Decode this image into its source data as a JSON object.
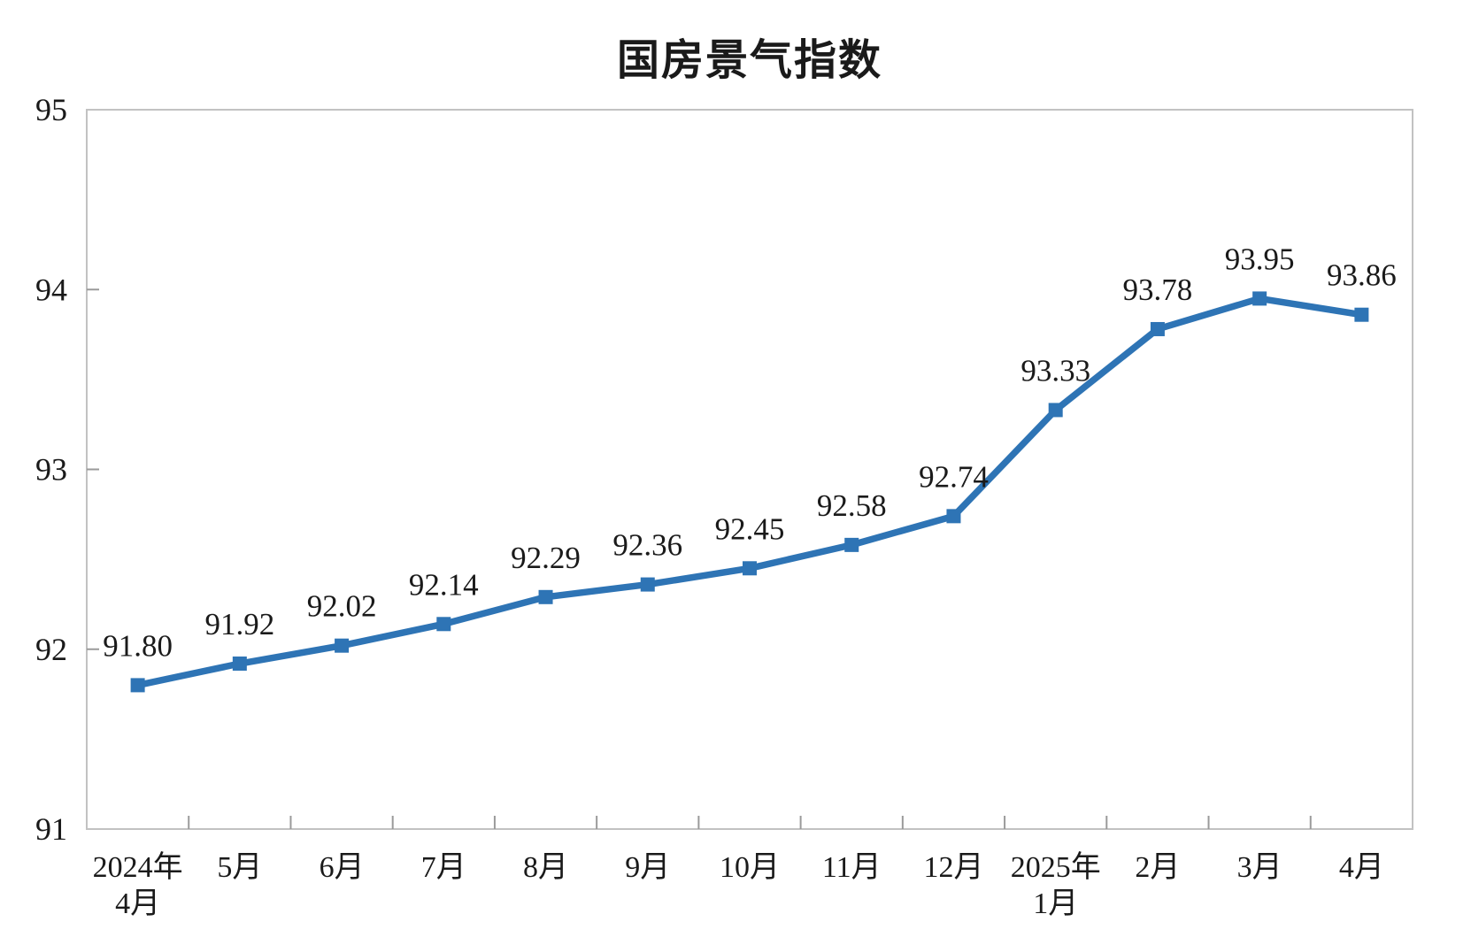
{
  "chart_data": {
    "type": "line",
    "title": "国房景气指数",
    "categories": [
      [
        "2024年",
        "4月"
      ],
      [
        "5月"
      ],
      [
        "6月"
      ],
      [
        "7月"
      ],
      [
        "8月"
      ],
      [
        "9月"
      ],
      [
        "10月"
      ],
      [
        "11月"
      ],
      [
        "12月"
      ],
      [
        "2025年",
        "1月"
      ],
      [
        "2月"
      ],
      [
        "3月"
      ],
      [
        "4月"
      ]
    ],
    "values": [
      91.8,
      91.92,
      92.02,
      92.14,
      92.29,
      92.36,
      92.45,
      92.58,
      92.74,
      93.33,
      93.78,
      93.95,
      93.86
    ],
    "value_labels": [
      "91.80",
      "91.92",
      "92.02",
      "92.14",
      "92.29",
      "92.36",
      "92.45",
      "92.58",
      "92.74",
      "93.33",
      "93.78",
      "93.95",
      "93.86"
    ],
    "xlabel": "",
    "ylabel": "",
    "ylim": [
      91,
      95
    ],
    "yticks": [
      91,
      92,
      93,
      94,
      95
    ],
    "grid": false,
    "legend": "none",
    "marker": "square",
    "data_label_position": "above",
    "colors": {
      "series": "#2E74B5",
      "plot_border": "#C2C2C2",
      "tick": "#9A9A9A",
      "text": "#1A1A1A",
      "background": "#FFFFFF"
    }
  }
}
